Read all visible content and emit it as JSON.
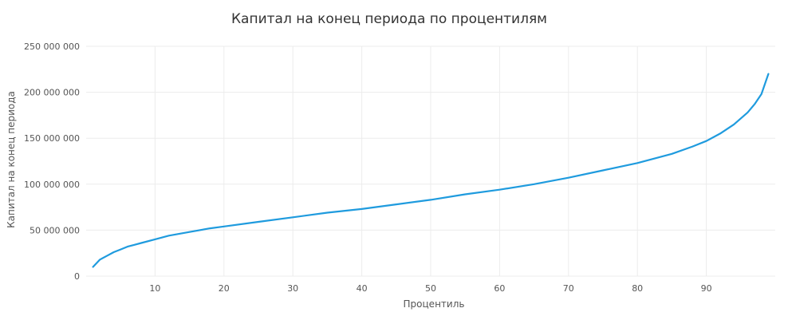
{
  "chart_data": {
    "type": "line",
    "title": "Капитал на конец периода по процентилям",
    "xlabel": "Процентиль",
    "ylabel": "Капитал на конец периода",
    "x_ticks": [
      10,
      20,
      30,
      40,
      50,
      60,
      70,
      80,
      90
    ],
    "y_ticks": [
      0,
      50000000,
      100000000,
      150000000,
      200000000,
      250000000
    ],
    "y_tick_labels": [
      "0",
      "50 000 000",
      "100 000 000",
      "150 000 000",
      "200 000 000",
      "250 000 000"
    ],
    "xlim": [
      0,
      100
    ],
    "ylim": [
      0,
      250000000
    ],
    "grid": true,
    "series": [
      {
        "name": "Капитал",
        "color": "#1f9bde",
        "x": [
          1,
          2,
          3,
          4,
          5,
          6,
          7,
          8,
          10,
          12,
          15,
          18,
          20,
          25,
          30,
          35,
          40,
          45,
          50,
          55,
          60,
          65,
          70,
          75,
          80,
          85,
          88,
          90,
          92,
          94,
          96,
          97,
          98,
          99
        ],
        "values": [
          10000000,
          18000000,
          22000000,
          26000000,
          29000000,
          32000000,
          34000000,
          36000000,
          40000000,
          44000000,
          48000000,
          52000000,
          54000000,
          59000000,
          64000000,
          69000000,
          73000000,
          78000000,
          83000000,
          89000000,
          94000000,
          100000000,
          107000000,
          115000000,
          123000000,
          133000000,
          141000000,
          147000000,
          155000000,
          165000000,
          178000000,
          187000000,
          198000000,
          220000000
        ]
      }
    ]
  }
}
